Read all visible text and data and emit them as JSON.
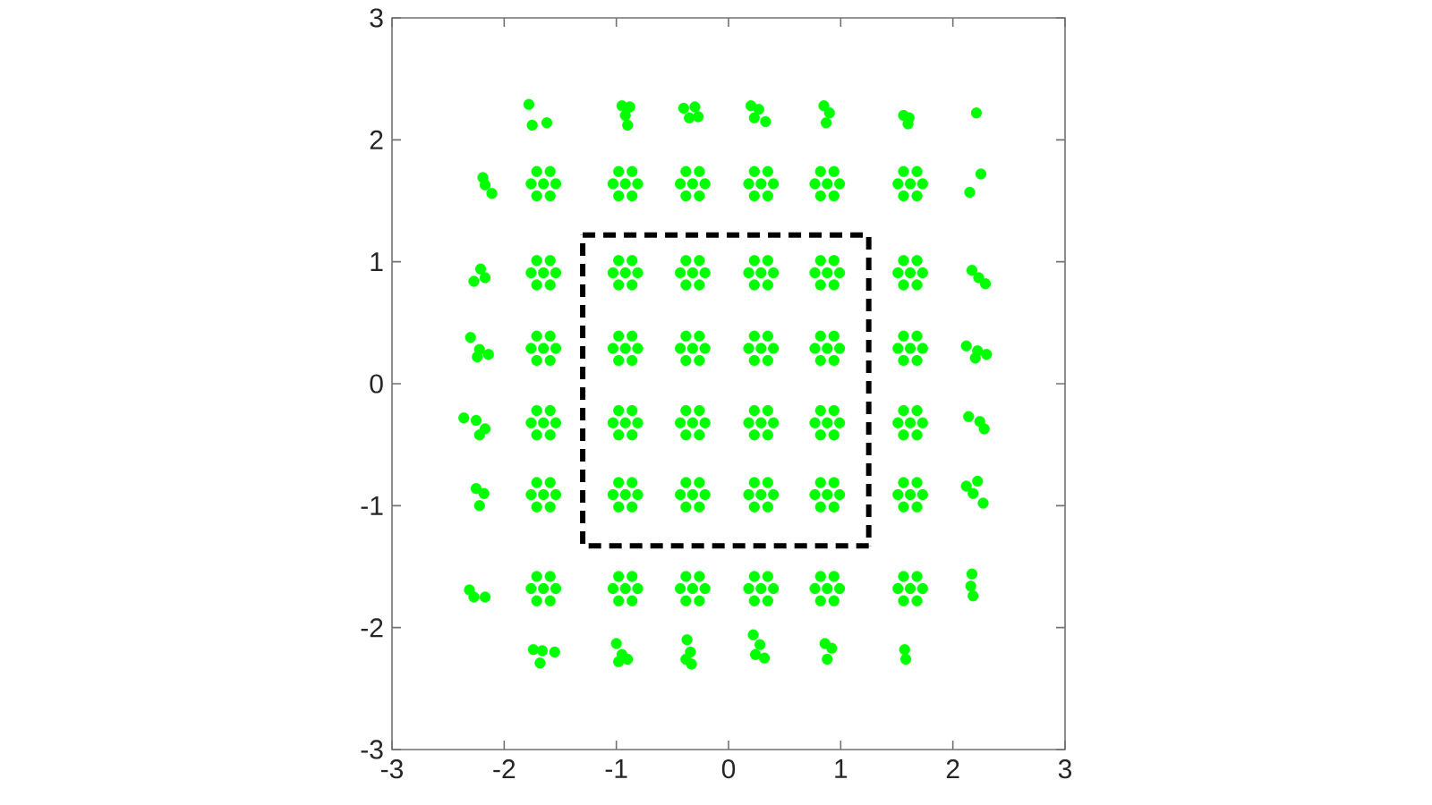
{
  "chart_data": {
    "type": "scatter",
    "xlim": [
      -3,
      3
    ],
    "ylim": [
      -3,
      3
    ],
    "xticks": [
      -3,
      -2,
      -1,
      0,
      1,
      2,
      3
    ],
    "yticks": [
      -3,
      -2,
      -1,
      0,
      1,
      2,
      3
    ],
    "marker": "circle",
    "series": [
      {
        "color": "#00ff00",
        "x": [
          -1.78,
          -1.75,
          -1.62,
          -0.95,
          -0.88,
          -0.92,
          -0.9,
          -0.4,
          -0.3,
          -0.35,
          -0.27,
          0.2,
          0.27,
          0.23,
          0.33,
          0.85,
          0.9,
          0.87,
          1.56,
          1.61,
          1.6,
          2.21
        ],
        "values": [
          2.29,
          2.12,
          2.14,
          2.28,
          2.27,
          2.2,
          2.12,
          2.26,
          2.27,
          2.18,
          2.19,
          2.28,
          2.25,
          2.18,
          2.15,
          2.28,
          2.22,
          2.14,
          2.2,
          2.18,
          2.13,
          2.22
        ]
      },
      {
        "color": "#00ff00",
        "x": [
          -2.19,
          -2.17,
          -2.11,
          -1.65,
          -1.76,
          -1.54,
          -1.71,
          -1.59,
          -1.71,
          -1.59,
          -0.92,
          -1.03,
          -0.81,
          -0.98,
          -0.86,
          -0.98,
          -0.86,
          -0.32,
          -0.43,
          -0.21,
          -0.38,
          -0.26,
          -0.38,
          -0.26,
          0.29,
          0.18,
          0.4,
          0.23,
          0.35,
          0.23,
          0.35,
          0.88,
          0.77,
          0.99,
          0.82,
          0.94,
          0.82,
          0.94,
          1.62,
          1.51,
          1.73,
          1.56,
          1.68,
          1.56,
          1.68,
          2.15,
          2.25
        ],
        "values": [
          1.69,
          1.63,
          1.56,
          1.64,
          1.64,
          1.64,
          1.74,
          1.74,
          1.54,
          1.54,
          1.64,
          1.64,
          1.64,
          1.74,
          1.74,
          1.54,
          1.54,
          1.64,
          1.64,
          1.64,
          1.74,
          1.74,
          1.54,
          1.54,
          1.64,
          1.64,
          1.64,
          1.74,
          1.74,
          1.54,
          1.54,
          1.64,
          1.64,
          1.64,
          1.74,
          1.74,
          1.54,
          1.54,
          1.64,
          1.64,
          1.64,
          1.74,
          1.74,
          1.54,
          1.54,
          1.57,
          1.72
        ]
      },
      {
        "color": "#00ff00",
        "x": [
          -2.27,
          -2.21,
          -2.17,
          -1.65,
          -1.76,
          -1.54,
          -1.71,
          -1.59,
          -1.71,
          -1.59,
          -0.92,
          -1.03,
          -0.81,
          -0.98,
          -0.86,
          -0.98,
          -0.86,
          -0.32,
          -0.43,
          -0.21,
          -0.38,
          -0.26,
          -0.38,
          -0.26,
          0.29,
          0.18,
          0.4,
          0.23,
          0.35,
          0.23,
          0.35,
          0.88,
          0.77,
          0.99,
          0.82,
          0.94,
          0.82,
          0.94,
          1.62,
          1.51,
          1.73,
          1.56,
          1.68,
          1.56,
          1.68,
          2.17,
          2.23,
          2.29
        ],
        "values": [
          0.84,
          0.94,
          0.87,
          0.91,
          0.91,
          0.91,
          1.01,
          1.01,
          0.81,
          0.81,
          0.91,
          0.91,
          0.91,
          1.01,
          1.01,
          0.81,
          0.81,
          0.91,
          0.91,
          0.91,
          1.01,
          1.01,
          0.81,
          0.81,
          0.91,
          0.91,
          0.91,
          1.01,
          1.01,
          0.81,
          0.81,
          0.91,
          0.91,
          0.91,
          1.01,
          1.01,
          0.81,
          0.81,
          0.91,
          0.91,
          0.91,
          1.01,
          1.01,
          0.81,
          0.81,
          0.93,
          0.87,
          0.82
        ]
      },
      {
        "color": "#00ff00",
        "x": [
          -2.3,
          -2.22,
          -2.14,
          -2.24,
          -1.65,
          -1.76,
          -1.54,
          -1.71,
          -1.59,
          -1.71,
          -1.59,
          -0.92,
          -1.03,
          -0.81,
          -0.98,
          -0.86,
          -0.98,
          -0.86,
          -0.32,
          -0.43,
          -0.21,
          -0.38,
          -0.26,
          -0.38,
          -0.26,
          0.29,
          0.18,
          0.4,
          0.23,
          0.35,
          0.23,
          0.35,
          0.88,
          0.77,
          0.99,
          0.82,
          0.94,
          0.82,
          0.94,
          1.62,
          1.51,
          1.73,
          1.56,
          1.68,
          1.56,
          1.68,
          2.12,
          2.22,
          2.3,
          2.2
        ],
        "values": [
          0.38,
          0.28,
          0.24,
          0.22,
          0.29,
          0.29,
          0.29,
          0.39,
          0.39,
          0.19,
          0.19,
          0.29,
          0.29,
          0.29,
          0.39,
          0.39,
          0.19,
          0.19,
          0.29,
          0.29,
          0.29,
          0.39,
          0.39,
          0.19,
          0.19,
          0.29,
          0.29,
          0.29,
          0.39,
          0.39,
          0.19,
          0.19,
          0.29,
          0.29,
          0.29,
          0.39,
          0.39,
          0.19,
          0.19,
          0.29,
          0.29,
          0.29,
          0.39,
          0.39,
          0.19,
          0.19,
          0.31,
          0.27,
          0.24,
          0.21
        ]
      },
      {
        "color": "#00ff00",
        "x": [
          -2.36,
          -2.25,
          -2.17,
          -2.22,
          -1.65,
          -1.76,
          -1.54,
          -1.71,
          -1.59,
          -1.71,
          -1.59,
          -0.92,
          -1.03,
          -0.81,
          -0.98,
          -0.86,
          -0.98,
          -0.86,
          -0.32,
          -0.43,
          -0.21,
          -0.38,
          -0.26,
          -0.38,
          -0.26,
          0.29,
          0.18,
          0.4,
          0.23,
          0.35,
          0.23,
          0.35,
          0.88,
          0.77,
          0.99,
          0.82,
          0.94,
          0.82,
          0.94,
          1.62,
          1.51,
          1.73,
          1.56,
          1.68,
          1.56,
          1.68,
          2.14,
          2.24,
          2.28
        ],
        "values": [
          -0.28,
          -0.3,
          -0.37,
          -0.42,
          -0.32,
          -0.32,
          -0.32,
          -0.22,
          -0.22,
          -0.42,
          -0.42,
          -0.32,
          -0.32,
          -0.32,
          -0.22,
          -0.22,
          -0.42,
          -0.42,
          -0.32,
          -0.32,
          -0.32,
          -0.22,
          -0.22,
          -0.42,
          -0.42,
          -0.32,
          -0.32,
          -0.32,
          -0.22,
          -0.22,
          -0.42,
          -0.42,
          -0.32,
          -0.32,
          -0.32,
          -0.22,
          -0.22,
          -0.42,
          -0.42,
          -0.32,
          -0.32,
          -0.32,
          -0.22,
          -0.22,
          -0.42,
          -0.42,
          -0.27,
          -0.31,
          -0.37
        ]
      },
      {
        "color": "#00ff00",
        "x": [
          -2.25,
          -2.18,
          -2.22,
          -1.65,
          -1.76,
          -1.54,
          -1.71,
          -1.59,
          -1.71,
          -1.59,
          -0.92,
          -1.03,
          -0.81,
          -0.98,
          -0.86,
          -0.98,
          -0.86,
          -0.32,
          -0.43,
          -0.21,
          -0.38,
          -0.26,
          -0.38,
          -0.26,
          0.29,
          0.18,
          0.4,
          0.23,
          0.35,
          0.23,
          0.35,
          0.88,
          0.77,
          0.99,
          0.82,
          0.94,
          0.82,
          0.94,
          1.62,
          1.51,
          1.73,
          1.56,
          1.68,
          1.56,
          1.68,
          2.12,
          2.22,
          2.27,
          2.18
        ],
        "values": [
          -0.86,
          -0.9,
          -1.0,
          -0.91,
          -0.91,
          -0.91,
          -0.81,
          -0.81,
          -1.01,
          -1.01,
          -0.91,
          -0.91,
          -0.91,
          -0.81,
          -0.81,
          -1.01,
          -1.01,
          -0.91,
          -0.91,
          -0.91,
          -0.81,
          -0.81,
          -1.01,
          -1.01,
          -0.91,
          -0.91,
          -0.91,
          -0.81,
          -0.81,
          -1.01,
          -1.01,
          -0.91,
          -0.91,
          -0.91,
          -0.81,
          -0.81,
          -1.01,
          -1.01,
          -0.91,
          -0.91,
          -0.91,
          -0.81,
          -0.81,
          -1.01,
          -1.01,
          -0.84,
          -0.8,
          -0.98,
          -0.9
        ]
      },
      {
        "color": "#00ff00",
        "x": [
          -2.31,
          -2.27,
          -2.17,
          -1.65,
          -1.76,
          -1.54,
          -1.71,
          -1.59,
          -1.71,
          -1.59,
          -0.92,
          -1.03,
          -0.81,
          -0.98,
          -0.86,
          -0.98,
          -0.86,
          -0.32,
          -0.43,
          -0.21,
          -0.38,
          -0.26,
          -0.38,
          -0.26,
          0.29,
          0.18,
          0.4,
          0.23,
          0.35,
          0.23,
          0.35,
          0.88,
          0.77,
          0.99,
          0.82,
          0.94,
          0.82,
          0.94,
          1.62,
          1.51,
          1.73,
          1.56,
          1.68,
          1.56,
          1.68,
          2.17,
          2.16,
          2.18
        ],
        "values": [
          -1.69,
          -1.75,
          -1.75,
          -1.68,
          -1.68,
          -1.68,
          -1.58,
          -1.58,
          -1.78,
          -1.78,
          -1.68,
          -1.68,
          -1.68,
          -1.58,
          -1.58,
          -1.78,
          -1.78,
          -1.68,
          -1.68,
          -1.68,
          -1.58,
          -1.58,
          -1.78,
          -1.78,
          -1.68,
          -1.68,
          -1.68,
          -1.58,
          -1.58,
          -1.78,
          -1.78,
          -1.68,
          -1.68,
          -1.68,
          -1.58,
          -1.58,
          -1.78,
          -1.78,
          -1.68,
          -1.68,
          -1.68,
          -1.58,
          -1.58,
          -1.78,
          -1.78,
          -1.56,
          -1.66,
          -1.74
        ]
      },
      {
        "color": "#00ff00",
        "x": [
          -1.74,
          -1.66,
          -1.55,
          -1.68,
          -1.0,
          -0.95,
          -0.9,
          -0.98,
          -0.37,
          -0.34,
          -0.38,
          -0.33,
          0.22,
          0.28,
          0.24,
          0.32,
          0.86,
          0.92,
          0.88,
          1.57,
          1.58
        ],
        "values": [
          -2.18,
          -2.19,
          -2.2,
          -2.29,
          -2.13,
          -2.22,
          -2.26,
          -2.28,
          -2.1,
          -2.2,
          -2.26,
          -2.3,
          -2.06,
          -2.14,
          -2.22,
          -2.25,
          -2.13,
          -2.17,
          -2.26,
          -2.18,
          -2.26
        ]
      },
      {
        "type": "line",
        "color": "#000000",
        "line_style": "dashed",
        "marker": "none",
        "x": [
          -1.3,
          1.25,
          1.25
        ],
        "values": [
          1.22,
          1.22,
          -1.33
        ]
      },
      {
        "type": "line",
        "color": "#000000",
        "line_style": "dashed",
        "marker": "none",
        "x": [
          1.25,
          -1.3,
          -1.3
        ],
        "values": [
          -1.33,
          -1.33,
          1.22
        ]
      }
    ]
  }
}
